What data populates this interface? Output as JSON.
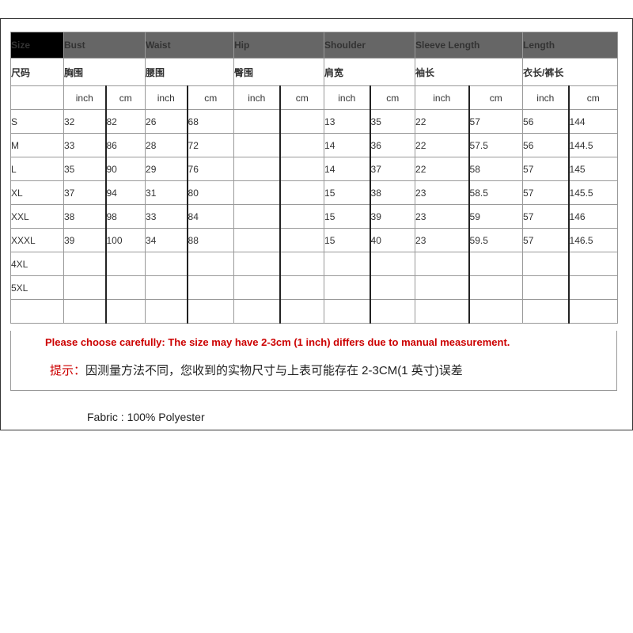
{
  "header_en": [
    "Size",
    "Bust",
    "Waist",
    "Hip",
    "Shoulder",
    "Sleeve   Length",
    "Length"
  ],
  "header_cn": [
    "尺码",
    "胸围",
    "腰围",
    "臀围",
    "肩宽",
    "袖长",
    "衣长/裤长"
  ],
  "units": [
    "inch",
    "cm"
  ],
  "rows": [
    [
      "S",
      "32",
      "82",
      "26",
      "68",
      "",
      "",
      "13",
      "35",
      "22",
      "57",
      "56",
      "144"
    ],
    [
      "M",
      "33",
      "86",
      "28",
      "72",
      "",
      "",
      "14",
      "36",
      "22",
      "57.5",
      "56",
      "144.5"
    ],
    [
      "L",
      "35",
      "90",
      "29",
      "76",
      "",
      "",
      "14",
      "37",
      "22",
      "58",
      "57",
      "145"
    ],
    [
      "XL",
      "37",
      "94",
      "31",
      "80",
      "",
      "",
      "15",
      "38",
      "23",
      "58.5",
      "57",
      "145.5"
    ],
    [
      "XXL",
      "38",
      "98",
      "33",
      "84",
      "",
      "",
      "15",
      "39",
      "23",
      "59",
      "57",
      "146"
    ],
    [
      "XXXL",
      "39",
      "100",
      "34",
      "88",
      "",
      "",
      "15",
      "40",
      "23",
      "59.5",
      "57",
      "146.5"
    ],
    [
      "4XL",
      "",
      "",
      "",
      "",
      "",
      "",
      "",
      "",
      "",
      "",
      "",
      ""
    ],
    [
      "5XL",
      "",
      "",
      "",
      "",
      "",
      "",
      "",
      "",
      "",
      "",
      "",
      ""
    ],
    [
      "",
      "",
      "",
      "",
      "",
      "",
      "",
      "",
      "",
      "",
      "",
      "",
      ""
    ]
  ],
  "note_en": "Please choose carefully:  The size may have 2-3cm (1 inch) differs due to manual measurement.",
  "note_cn_label": "提示：",
  "note_cn": "因测量方法不同，您收到的实物尺寸与上表可能存在 2-3CM(1 英寸)误差",
  "fabric": "Fabric : 100% Polyester",
  "colors": {
    "header_bg": "#666666",
    "size_bg": "#000000",
    "note": "#cc0000"
  }
}
